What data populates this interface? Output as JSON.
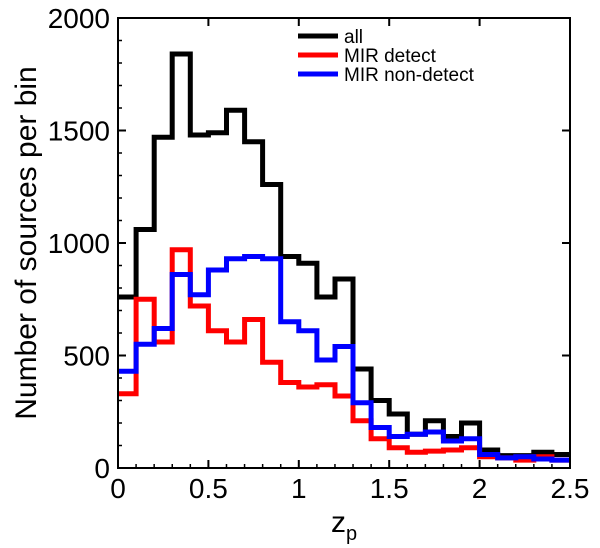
{
  "chart_data": {
    "type": "step",
    "title": "",
    "xlabel": "z",
    "xlabel_subscript": "p",
    "ylabel": "Number of sources per bin",
    "xlim": [
      0,
      2.5
    ],
    "ylim": [
      0,
      2000
    ],
    "xticks": [
      0,
      0.5,
      1,
      1.5,
      2,
      2.5
    ],
    "xtick_labels": [
      "0",
      "0.5",
      "1",
      "1.5",
      "2",
      "2.5"
    ],
    "yticks": [
      0,
      500,
      1000,
      1500,
      2000
    ],
    "ytick_labels": [
      "0",
      "500",
      "1000",
      "1500",
      "2000"
    ],
    "grid": false,
    "legend_position": "top-right",
    "bin_edges": [
      0,
      0.1,
      0.2,
      0.3,
      0.4,
      0.5,
      0.6,
      0.7,
      0.8,
      0.9,
      1.0,
      1.1,
      1.2,
      1.3,
      1.4,
      1.5,
      1.6,
      1.7,
      1.8,
      1.9,
      2.0,
      2.1,
      2.2,
      2.3,
      2.4,
      2.5
    ],
    "series": [
      {
        "name": "all",
        "color": "#000000",
        "values": [
          760,
          1060,
          1470,
          1840,
          1480,
          1490,
          1590,
          1450,
          1260,
          940,
          910,
          760,
          840,
          440,
          300,
          240,
          150,
          210,
          140,
          200,
          80,
          55,
          55,
          70,
          60
        ]
      },
      {
        "name": "MIR detect",
        "color": "#ff0000",
        "values": [
          330,
          750,
          560,
          970,
          720,
          610,
          560,
          660,
          470,
          380,
          360,
          370,
          320,
          210,
          130,
          90,
          70,
          75,
          80,
          90,
          50,
          45,
          35,
          50,
          35
        ]
      },
      {
        "name": "MIR non-detect",
        "color": "#0000ff",
        "values": [
          430,
          550,
          620,
          860,
          770,
          880,
          930,
          940,
          930,
          650,
          610,
          480,
          540,
          290,
          180,
          140,
          150,
          160,
          120,
          130,
          60,
          45,
          50,
          40,
          35
        ]
      }
    ]
  }
}
